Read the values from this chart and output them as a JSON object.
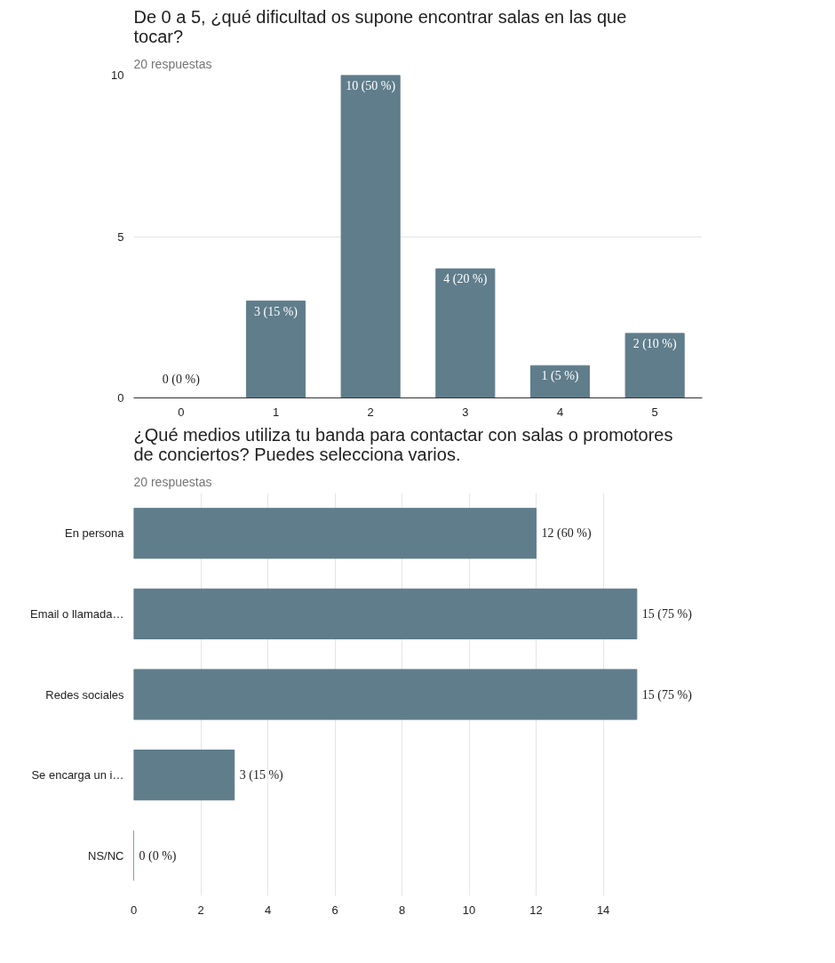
{
  "chart_data": [
    {
      "type": "bar",
      "title": "De 0 a 5, ¿qué dificultad os supone encontrar salas en las que tocar?",
      "subtitle": "20 respuestas",
      "categories": [
        "0",
        "1",
        "2",
        "3",
        "4",
        "5"
      ],
      "values": [
        0,
        3,
        10,
        4,
        1,
        2
      ],
      "color": "#607d8b",
      "value_labels": [
        "0 (0 %)",
        "3 (15 %)",
        "10 (50 %)",
        "4 (20 %)",
        "1 (5 %)",
        "2 (10 %)"
      ],
      "ylim": [
        0,
        10
      ],
      "yticks": [
        0,
        5,
        10
      ],
      "grid": "y"
    },
    {
      "type": "bar",
      "orientation": "horizontal",
      "title": "¿Qué medios utiliza tu banda para contactar con salas o promotores de conciertos? Puedes selecciona varios.",
      "subtitle": "20 respuestas",
      "categories": [
        "En persona",
        "Email o llamada…",
        "Redes sociales",
        "Se encarga un i…",
        "NS/NC"
      ],
      "values": [
        12,
        15,
        15,
        3,
        0
      ],
      "color": "#607d8b",
      "value_labels": [
        "12 (60 %)",
        "15 (75 %)",
        "15 (75 %)",
        "3 (15 %)",
        "0 (0 %)"
      ],
      "xlim": [
        0,
        15
      ],
      "xticks": [
        0,
        2,
        4,
        6,
        8,
        10,
        12,
        14
      ],
      "grid": "x"
    }
  ]
}
